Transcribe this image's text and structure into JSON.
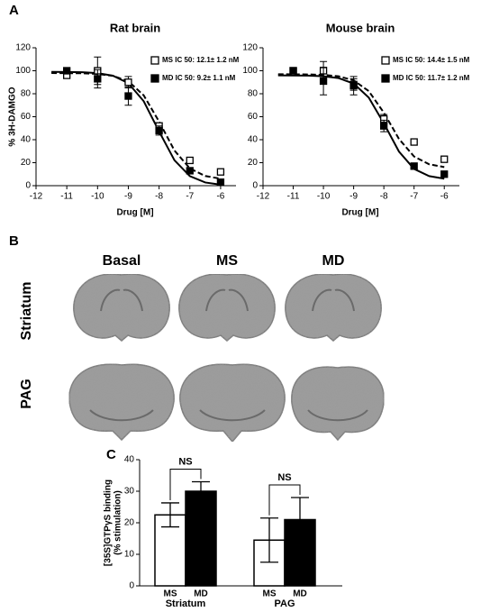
{
  "panel_labels": [
    "A",
    "B",
    "C"
  ],
  "brain_images": {
    "columns": [
      "Basal",
      "MS",
      "MD"
    ],
    "rows": [
      "Striatum",
      "PAG"
    ]
  },
  "chart_data": [
    {
      "type": "line",
      "title": "Rat brain",
      "x_label": "Drug [M]",
      "y_label": "% 3H-DAMGO",
      "xlim": [
        -12,
        -5.5
      ],
      "ylim": [
        0,
        120
      ],
      "xticks": [
        -12,
        -11,
        -10,
        -9,
        -8,
        -7,
        -6
      ],
      "yticks": [
        0,
        20,
        40,
        60,
        80,
        100,
        120
      ],
      "x": [
        -11,
        -10,
        -9,
        -8,
        -7,
        -6
      ],
      "series": [
        {
          "name": "MS IC 50: 12.1± 1.2 nM",
          "color": "#000000",
          "marker_fill": "#ffffff",
          "values": [
            96,
            100,
            90,
            52,
            22,
            12
          ],
          "errors": [
            null,
            12,
            5,
            null,
            null,
            null
          ]
        },
        {
          "name": "MD IC 50: 9.2± 1.1 nM",
          "color": "#000000",
          "marker_fill": "#000000",
          "values": [
            100,
            93,
            78,
            48,
            13,
            3
          ],
          "errors": [
            null,
            8,
            8,
            4,
            null,
            null
          ]
        }
      ],
      "curves": [
        {
          "style": "dashed",
          "x": [
            -11.5,
            -11,
            -10.5,
            -10,
            -9.5,
            -9,
            -8.5,
            -8,
            -7.5,
            -7,
            -6.5,
            -6
          ],
          "values": [
            98,
            97.9,
            97.8,
            97.2,
            95.6,
            90.9,
            78.6,
            55.8,
            30.6,
            15.0,
            8.4,
            6.1
          ]
        },
        {
          "style": "solid",
          "x": [
            -11.5,
            -11,
            -10.5,
            -10,
            -9.5,
            -9,
            -8.5,
            -8,
            -7.5,
            -7,
            -6.5,
            -6
          ],
          "values": [
            99,
            98.9,
            98.7,
            97.9,
            95.7,
            89.2,
            73.5,
            47.2,
            22.1,
            8.3,
            2.8,
            0.9
          ]
        }
      ]
    },
    {
      "type": "line",
      "title": "Mouse brain",
      "x_label": "Drug [M]",
      "xlim": [
        -12,
        -5.5
      ],
      "ylim": [
        0,
        120
      ],
      "xticks": [
        -12,
        -11,
        -10,
        -9,
        -8,
        -7,
        -6
      ],
      "yticks": [
        0,
        20,
        40,
        60,
        80,
        100,
        120
      ],
      "x": [
        -11,
        -10,
        -9,
        -8,
        -7,
        -6
      ],
      "series": [
        {
          "name": "MS IC 50: 14.4± 1.5 nM",
          "color": "#000000",
          "marker_fill": "#ffffff",
          "values": [
            100,
            100,
            88,
            58,
            38,
            23
          ],
          "errors": [
            null,
            8,
            5,
            4,
            null,
            null
          ]
        },
        {
          "name": "MD IC 50: 11.7± 1.2 nM",
          "color": "#000000",
          "marker_fill": "#000000",
          "values": [
            100,
            91,
            87,
            52,
            17,
            10
          ],
          "errors": [
            null,
            12,
            8,
            5,
            null,
            null
          ]
        }
      ],
      "curves": [
        {
          "style": "dashed",
          "x": [
            -11.5,
            -11,
            -10.5,
            -10,
            -9.5,
            -9,
            -8.5,
            -8,
            -7.5,
            -7,
            -6.5,
            -6
          ],
          "values": [
            97,
            96.9,
            96.8,
            96.4,
            95.2,
            91.7,
            82.3,
            63.5,
            40.7,
            25.4,
            18.6,
            16.2
          ]
        },
        {
          "style": "solid",
          "x": [
            -11.5,
            -11,
            -10.5,
            -10,
            -9.5,
            -9,
            -8.5,
            -8,
            -7.5,
            -7,
            -6.5,
            -6
          ],
          "values": [
            96,
            95.9,
            95.8,
            95.2,
            93.6,
            88.9,
            76.7,
            54.2,
            29.7,
            14.6,
            8.3,
            6.1
          ]
        }
      ]
    },
    {
      "type": "bar",
      "y_label": [
        "[35S]GTPγS binding",
        "(% stimulation)"
      ],
      "ylim": [
        0,
        40
      ],
      "yticks": [
        0,
        10,
        20,
        30,
        40
      ],
      "categories": [
        "MS",
        "MD",
        "MS",
        "MD"
      ],
      "group_labels": [
        "Striatum",
        "PAG"
      ],
      "values": [
        22.5,
        30,
        14.5,
        21
      ],
      "errors": [
        3.8,
        3,
        7,
        7
      ],
      "colors": [
        "#ffffff",
        "#000000",
        "#ffffff",
        "#000000"
      ],
      "annotations": [
        "NS",
        "NS"
      ]
    }
  ]
}
